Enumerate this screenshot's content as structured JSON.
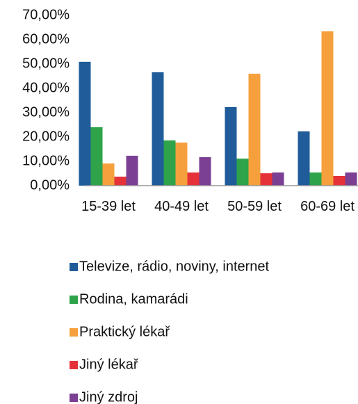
{
  "chart_data": {
    "type": "bar",
    "categories": [
      "15-39 let",
      "40-49 let",
      "50-59 let",
      "60-69 let"
    ],
    "series": [
      {
        "name": "Televize, rádio, noviny, internet",
        "color": "#1f5c99",
        "values": [
          50.9,
          46.6,
          32.3,
          22.3
        ]
      },
      {
        "name": "Rodina, kamarádi",
        "color": "#2ea34a",
        "values": [
          24,
          18.6,
          11.1,
          5.4
        ]
      },
      {
        "name": "Praktický lékař",
        "color": "#f5a03c",
        "values": [
          9.1,
          17.7,
          46,
          63.4
        ]
      },
      {
        "name": "Jiný lékař",
        "color": "#e53238",
        "values": [
          3.7,
          5.4,
          5.1,
          4
        ]
      },
      {
        "name": "Jiný zdroj",
        "color": "#7b3f93",
        "values": [
          12.3,
          11.7,
          5.4,
          5.4
        ]
      }
    ],
    "ylim": [
      0,
      70
    ],
    "yticks": [
      {
        "value": 0,
        "label": "0,00%"
      },
      {
        "value": 10,
        "label": "10,00%"
      },
      {
        "value": 20,
        "label": "20,00%"
      },
      {
        "value": 30,
        "label": "30,00%"
      },
      {
        "value": 40,
        "label": "40,00%"
      },
      {
        "value": 50,
        "label": "50,00%"
      },
      {
        "value": 60,
        "label": "60,00%"
      },
      {
        "value": 70,
        "label": "70,00%"
      }
    ],
    "grid": false,
    "legend": "bottom"
  }
}
